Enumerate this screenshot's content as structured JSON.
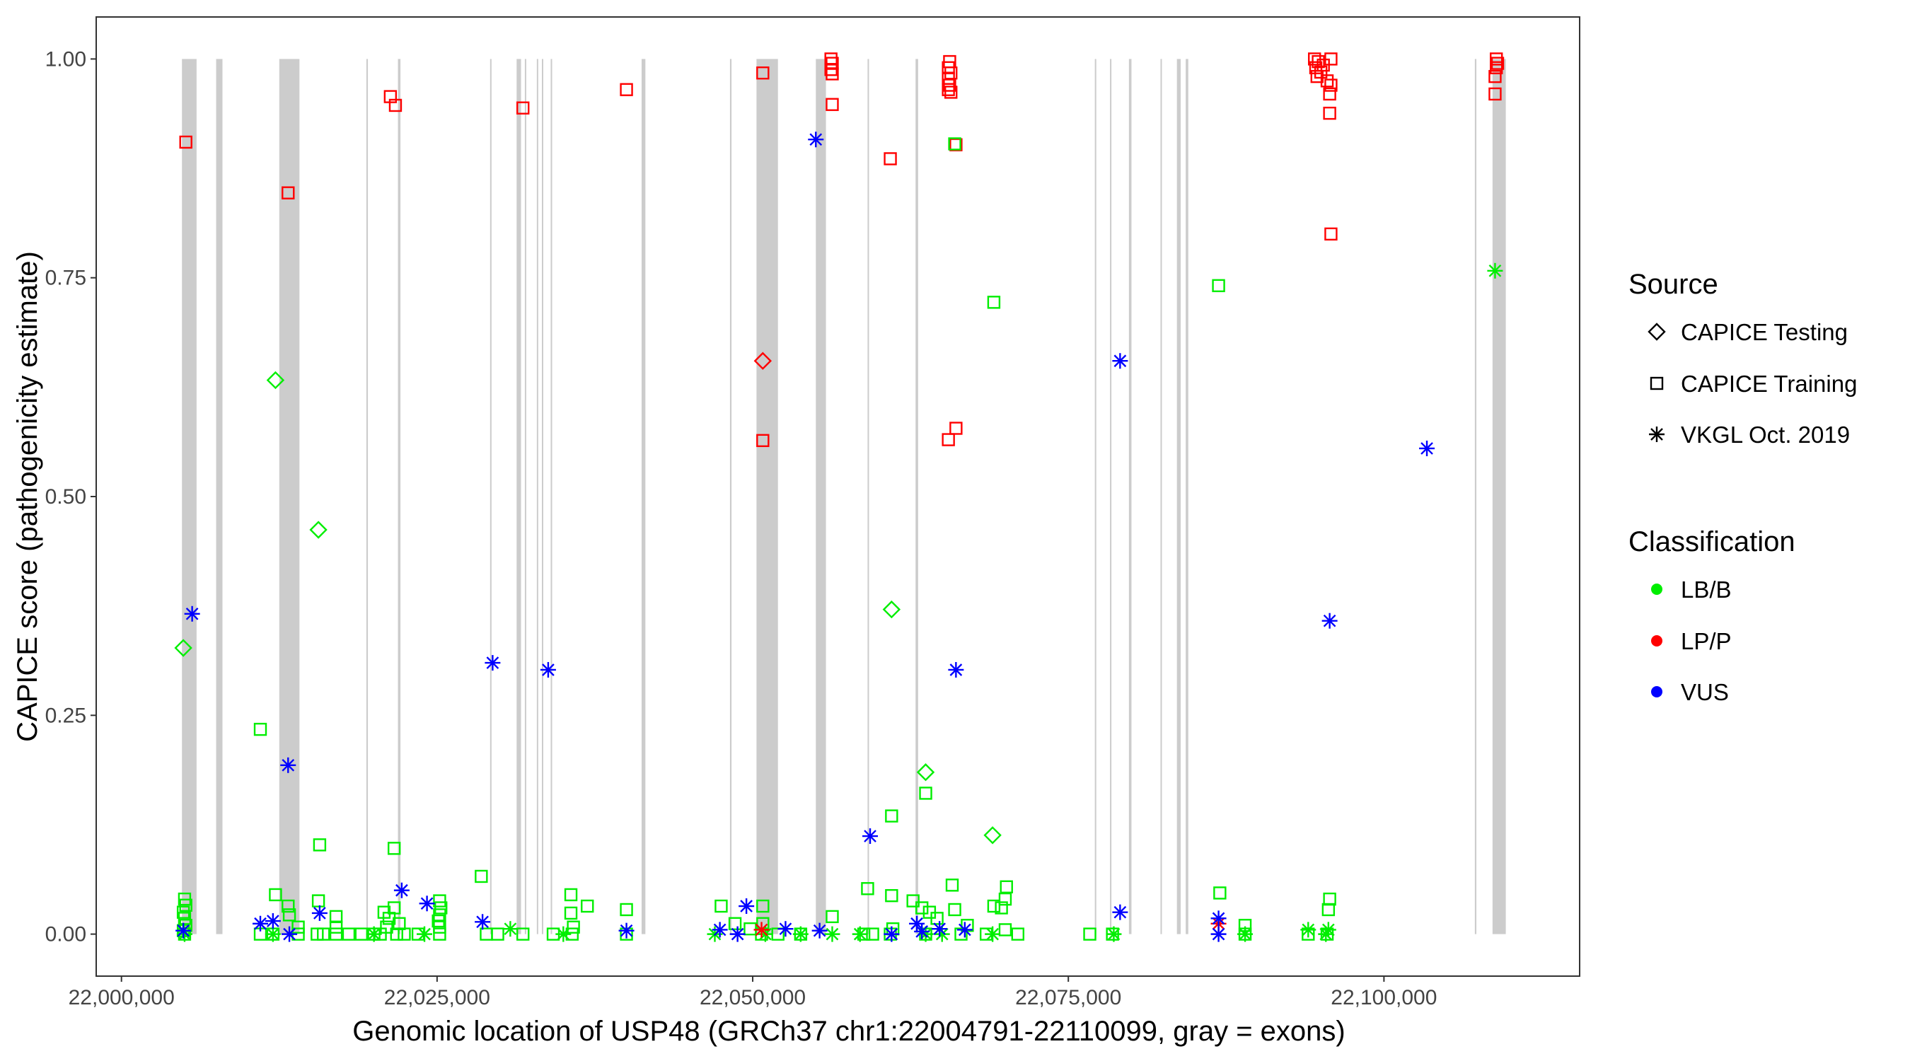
{
  "chart_data": {
    "type": "scatter",
    "xlabel": "Genomic location of USP48 (GRCh37 chr1:22004791-22110099, gray = exons)",
    "ylabel": "CAPICE score (pathogenicity estimate)",
    "xlim": [
      21998000,
      22115500
    ],
    "ylim": [
      -0.048,
      1.048
    ],
    "x_ticks": [
      22000000,
      22025000,
      22050000,
      22075000,
      22100000
    ],
    "x_tick_labels": [
      "22,000,000",
      "22,025,000",
      "22,050,000",
      "22,075,000",
      "22,100,000"
    ],
    "y_ticks": [
      0,
      0.25,
      0.5,
      0.75,
      1.0
    ],
    "y_tick_labels": [
      "0.00",
      "0.25",
      "0.50",
      "0.75",
      "1.00"
    ],
    "grid": false,
    "exon_color": "#cccccc",
    "exons": [
      [
        22004791,
        22005950
      ],
      [
        22007500,
        22008000
      ],
      [
        22012500,
        22014100
      ],
      [
        22019400,
        22019520
      ],
      [
        22021900,
        22022100
      ],
      [
        22029200,
        22029280
      ],
      [
        22031300,
        22031650
      ],
      [
        22031950,
        22032050
      ],
      [
        22032900,
        22033000
      ],
      [
        22033300,
        22033400
      ],
      [
        22034000,
        22034100
      ],
      [
        22041200,
        22041500
      ],
      [
        22048200,
        22048320
      ],
      [
        22050300,
        22052000
      ],
      [
        22055000,
        22055800
      ],
      [
        22059100,
        22059200
      ],
      [
        22062900,
        22063100
      ],
      [
        22077100,
        22077200
      ],
      [
        22078300,
        22078400
      ],
      [
        22079800,
        22080000
      ],
      [
        22082300,
        22082400
      ],
      [
        22083600,
        22083900
      ],
      [
        22084300,
        22084500
      ],
      [
        22107200,
        22107320
      ],
      [
        22108600,
        22109650
      ]
    ],
    "legend": {
      "source_title": "Source",
      "source_items": [
        {
          "label": "CAPICE Testing",
          "shape": "diamond"
        },
        {
          "label": "CAPICE Training",
          "shape": "square"
        },
        {
          "label": "VKGL Oct. 2019",
          "shape": "asterisk"
        }
      ],
      "class_title": "Classification",
      "class_items": [
        {
          "label": "LB/B",
          "color": "#00ee00"
        },
        {
          "label": "LP/P",
          "color": "#ff0000"
        },
        {
          "label": "VUS",
          "color": "#0000ff"
        }
      ],
      "placement": "right"
    },
    "series": [
      {
        "source": "CAPICE Training",
        "classification": "LP/P",
        "points": [
          [
            22005100,
            0.905
          ],
          [
            22013200,
            0.847
          ],
          [
            22021300,
            0.957
          ],
          [
            22021700,
            0.947
          ],
          [
            22031800,
            0.944
          ],
          [
            22040000,
            0.965
          ],
          [
            22050800,
            0.984
          ],
          [
            22050800,
            0.564
          ],
          [
            22056200,
            1.0
          ],
          [
            22056300,
            0.995
          ],
          [
            22056200,
            0.988
          ],
          [
            22056300,
            0.983
          ],
          [
            22056300,
            0.948
          ],
          [
            22060900,
            0.886
          ],
          [
            22065600,
            0.997
          ],
          [
            22065500,
            0.99
          ],
          [
            22065700,
            0.984
          ],
          [
            22065500,
            0.978
          ],
          [
            22065600,
            0.97
          ],
          [
            22065500,
            0.965
          ],
          [
            22065700,
            0.962
          ],
          [
            22066100,
            0.902
          ],
          [
            22065500,
            0.565
          ],
          [
            22066100,
            0.578
          ],
          [
            22094500,
            1.0
          ],
          [
            22094800,
            0.997
          ],
          [
            22095200,
            0.993
          ],
          [
            22095800,
            1.0
          ],
          [
            22094600,
            0.99
          ],
          [
            22095000,
            0.985
          ],
          [
            22094700,
            0.98
          ],
          [
            22095500,
            0.975
          ],
          [
            22095800,
            0.97
          ],
          [
            22095700,
            0.96
          ],
          [
            22095700,
            0.938
          ],
          [
            22095800,
            0.8
          ],
          [
            22108900,
            1.0
          ],
          [
            22109000,
            0.995
          ],
          [
            22108900,
            0.99
          ],
          [
            22108800,
            0.98
          ],
          [
            22108800,
            0.96
          ]
        ]
      },
      {
        "source": "CAPICE Testing",
        "classification": "LP/P",
        "points": [
          [
            22050800,
            0.655
          ]
        ]
      },
      {
        "source": "CAPICE Testing",
        "classification": "LB/B",
        "points": [
          [
            22004900,
            0.327
          ],
          [
            22012200,
            0.633
          ],
          [
            22015600,
            0.462
          ],
          [
            22061000,
            0.371
          ],
          [
            22063700,
            0.185
          ],
          [
            22069000,
            0.113
          ]
        ]
      },
      {
        "source": "CAPICE Training",
        "classification": "LB/B",
        "points": [
          [
            22011000,
            0.234
          ],
          [
            22015700,
            0.102
          ],
          [
            22021600,
            0.098
          ],
          [
            22028500,
            0.066
          ],
          [
            22056300,
            0.02
          ],
          [
            22059100,
            0.052
          ],
          [
            22061000,
            0.135
          ],
          [
            22061000,
            0.044
          ],
          [
            22063700,
            0.161
          ],
          [
            22066000,
            0.903
          ],
          [
            22065800,
            0.056
          ],
          [
            22069100,
            0.722
          ],
          [
            22070100,
            0.054
          ],
          [
            22086900,
            0.741
          ],
          [
            22087000,
            0.047
          ],
          [
            22095700,
            0.04
          ],
          [
            22095600,
            0.028
          ],
          [
            22005000,
            0.04
          ],
          [
            22005100,
            0.033
          ],
          [
            22004900,
            0.025
          ],
          [
            22005000,
            0.018
          ],
          [
            22005100,
            0.01
          ],
          [
            22004900,
            0.004
          ],
          [
            22005000,
            0.0
          ],
          [
            22012200,
            0.045
          ],
          [
            22013200,
            0.032
          ],
          [
            22013300,
            0.022
          ],
          [
            22015600,
            0.038
          ],
          [
            22017000,
            0.02
          ],
          [
            22017000,
            0.008
          ],
          [
            22017000,
            0.0
          ],
          [
            22014000,
            0.008
          ],
          [
            22014000,
            0.0
          ],
          [
            22011000,
            0.0
          ],
          [
            22012000,
            0.0
          ],
          [
            22015500,
            0.0
          ],
          [
            22016000,
            0.0
          ],
          [
            22018000,
            0.0
          ],
          [
            22019000,
            0.0
          ],
          [
            22020000,
            0.0
          ],
          [
            22020800,
            0.025
          ],
          [
            22021200,
            0.018
          ],
          [
            22021600,
            0.03
          ],
          [
            22022000,
            0.012
          ],
          [
            22021000,
            0.008
          ],
          [
            22022400,
            0.0
          ],
          [
            22023500,
            0.0
          ],
          [
            22021800,
            0.0
          ],
          [
            22020500,
            0.0
          ],
          [
            22025200,
            0.038
          ],
          [
            22025300,
            0.03
          ],
          [
            22025200,
            0.022
          ],
          [
            22025100,
            0.015
          ],
          [
            22025200,
            0.008
          ],
          [
            22025200,
            0.0
          ],
          [
            22028900,
            0.0
          ],
          [
            22029800,
            0.0
          ],
          [
            22031800,
            0.0
          ],
          [
            22034200,
            0.0
          ],
          [
            22035600,
            0.045
          ],
          [
            22035600,
            0.024
          ],
          [
            22035800,
            0.008
          ],
          [
            22035700,
            0.0
          ],
          [
            22036900,
            0.032
          ],
          [
            22040000,
            0.028
          ],
          [
            22040000,
            0.0
          ],
          [
            22047500,
            0.032
          ],
          [
            22048600,
            0.012
          ],
          [
            22049800,
            0.006
          ],
          [
            22050800,
            0.032
          ],
          [
            22050800,
            0.012
          ],
          [
            22050700,
            0.0
          ],
          [
            22052000,
            0.0
          ],
          [
            22053800,
            0.0
          ],
          [
            22058800,
            0.0
          ],
          [
            22059500,
            0.0
          ],
          [
            22060900,
            0.0
          ],
          [
            22061100,
            0.006
          ],
          [
            22062700,
            0.038
          ],
          [
            22063400,
            0.03
          ],
          [
            22064000,
            0.025
          ],
          [
            22063700,
            0.0
          ],
          [
            22064600,
            0.018
          ],
          [
            22066000,
            0.028
          ],
          [
            22067000,
            0.01
          ],
          [
            22066500,
            0.0
          ],
          [
            22068500,
            0.0
          ],
          [
            22069100,
            0.032
          ],
          [
            22069700,
            0.03
          ],
          [
            22070000,
            0.04
          ],
          [
            22070000,
            0.005
          ],
          [
            22071000,
            0.0
          ],
          [
            22076700,
            0.0
          ],
          [
            22078500,
            0.0
          ],
          [
            22089000,
            0.01
          ],
          [
            22089000,
            0.0
          ],
          [
            22094000,
            0.0
          ],
          [
            22095500,
            0.0
          ]
        ]
      },
      {
        "source": "VKGL Oct. 2019",
        "classification": "LB/B",
        "points": [
          [
            22108800,
            0.758
          ],
          [
            22005000,
            0.0
          ],
          [
            22012000,
            0.0
          ],
          [
            22020000,
            0.0
          ],
          [
            22024000,
            0.0
          ],
          [
            22030800,
            0.006
          ],
          [
            22035000,
            0.0
          ],
          [
            22047000,
            0.0
          ],
          [
            22051000,
            0.0
          ],
          [
            22053800,
            0.0
          ],
          [
            22056300,
            0.0
          ],
          [
            22058500,
            0.0
          ],
          [
            22063700,
            0.0
          ],
          [
            22065000,
            0.0
          ],
          [
            22069000,
            0.0
          ],
          [
            22078600,
            0.0
          ],
          [
            22089000,
            0.0
          ],
          [
            22094000,
            0.005
          ],
          [
            22095600,
            0.005
          ],
          [
            22095400,
            0.0
          ]
        ]
      },
      {
        "source": "VKGL Oct. 2019",
        "classification": "LP/P",
        "points": [
          [
            22050700,
            0.005
          ],
          [
            22086900,
            0.012
          ]
        ]
      },
      {
        "source": "VKGL Oct. 2019",
        "classification": "VUS",
        "points": [
          [
            22005600,
            0.366
          ],
          [
            22013200,
            0.193
          ],
          [
            22029400,
            0.31
          ],
          [
            22033800,
            0.302
          ],
          [
            22055000,
            0.908
          ],
          [
            22059300,
            0.112
          ],
          [
            22066100,
            0.302
          ],
          [
            22079100,
            0.655
          ],
          [
            22103400,
            0.555
          ],
          [
            22095700,
            0.358
          ],
          [
            22022200,
            0.05
          ],
          [
            22024200,
            0.035
          ],
          [
            22015700,
            0.024
          ],
          [
            22012000,
            0.015
          ],
          [
            22011000,
            0.012
          ],
          [
            22013300,
            0.0
          ],
          [
            22028600,
            0.014
          ],
          [
            22040000,
            0.004
          ],
          [
            22004900,
            0.004
          ],
          [
            22047400,
            0.005
          ],
          [
            22049500,
            0.032
          ],
          [
            22052600,
            0.006
          ],
          [
            22048800,
            0.0
          ],
          [
            22055300,
            0.004
          ],
          [
            22061000,
            0.0
          ],
          [
            22063000,
            0.012
          ],
          [
            22063400,
            0.003
          ],
          [
            22064800,
            0.006
          ],
          [
            22066800,
            0.005
          ],
          [
            22079100,
            0.025
          ],
          [
            22086900,
            0.018
          ],
          [
            22086900,
            0.0
          ]
        ]
      }
    ]
  }
}
